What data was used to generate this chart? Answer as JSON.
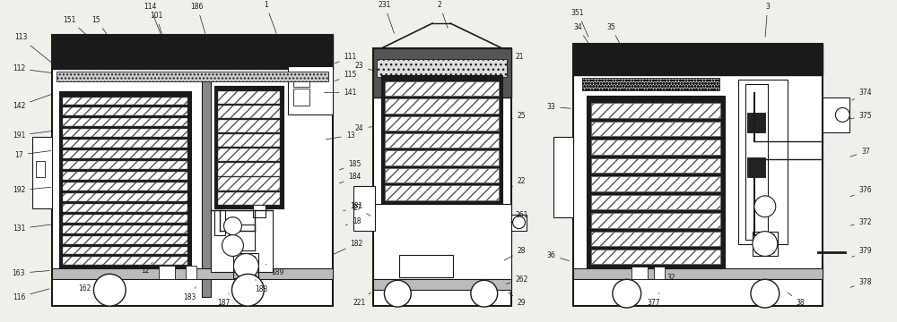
{
  "bg_color": "#f0f0eb",
  "line_color": "#1a1a1a",
  "fig_width": 10.0,
  "fig_height": 3.6,
  "dpi": 100,
  "ann_fontsize": 5.5
}
